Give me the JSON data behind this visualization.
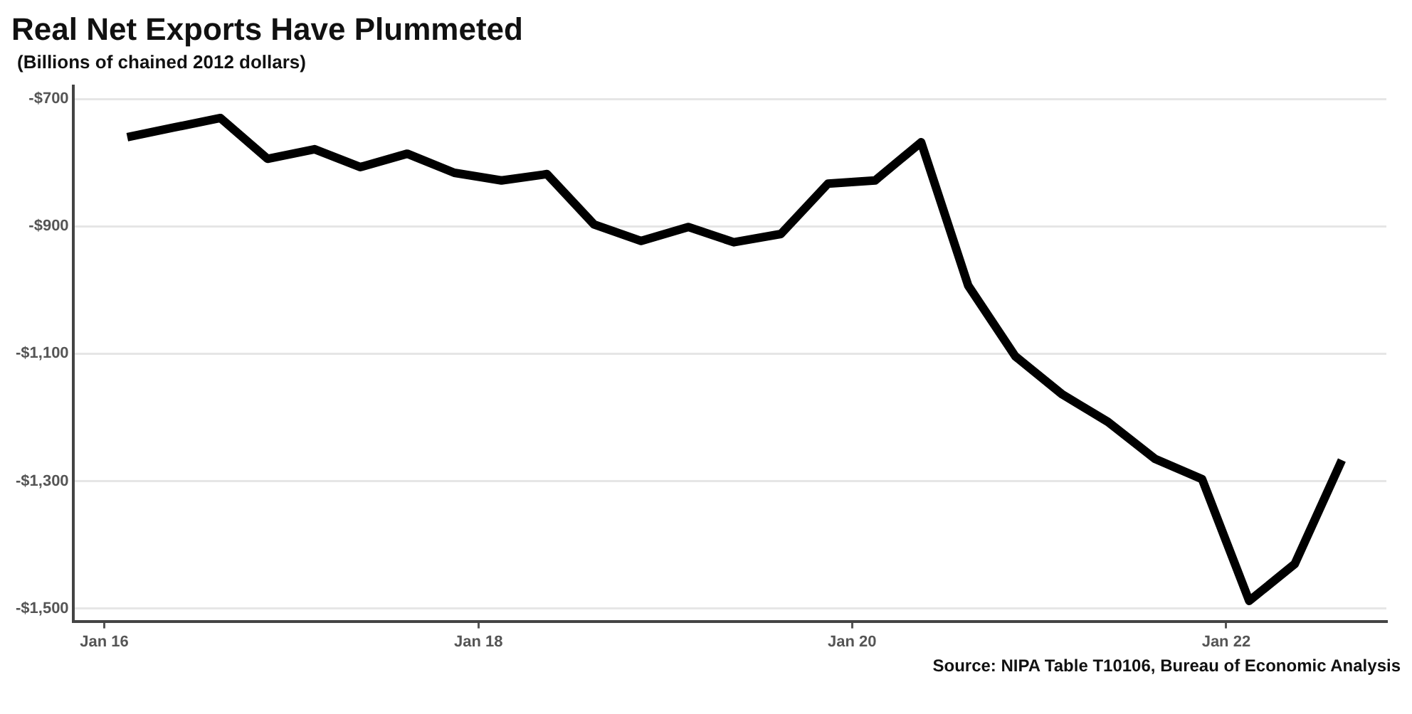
{
  "chart_data": {
    "type": "line",
    "title": "Real Net Exports Have Plummeted",
    "subtitle": "(Billions of chained 2012 dollars)",
    "x": [
      "2016-02-15",
      "2016-05-15",
      "2016-08-15",
      "2016-11-15",
      "2017-02-15",
      "2017-05-15",
      "2017-08-15",
      "2017-11-15",
      "2018-02-15",
      "2018-05-15",
      "2018-08-15",
      "2018-11-15",
      "2019-02-15",
      "2019-05-15",
      "2019-08-15",
      "2019-11-15",
      "2020-02-15",
      "2020-05-15",
      "2020-08-15",
      "2020-11-15",
      "2021-02-15",
      "2021-05-15",
      "2021-08-15",
      "2021-11-15",
      "2022-02-15",
      "2022-05-15",
      "2022-08-15"
    ],
    "series": [
      {
        "color": "#000000",
        "values": [
          -760,
          -745,
          -730,
          -794,
          -779,
          -807,
          -786,
          -816,
          -828,
          -818,
          -897,
          -923,
          -901,
          -925,
          -912,
          -833,
          -828,
          -768,
          -993,
          -1104,
          -1164,
          -1207,
          -1265,
          -1297,
          -1488,
          -1430,
          -1267
        ]
      }
    ],
    "xlim": [
      "2015-11-01",
      "2022-11-10"
    ],
    "xticks": [
      {
        "value": "2016-01-01",
        "label": "Jan 16"
      },
      {
        "value": "2018-01-01",
        "label": "Jan 18"
      },
      {
        "value": "2020-01-01",
        "label": "Jan 20"
      },
      {
        "value": "2022-01-01",
        "label": "Jan 22"
      }
    ],
    "ylim": [
      -1520,
      -680
    ],
    "yticks": [
      {
        "value": -700,
        "label": "-$700"
      },
      {
        "value": -900,
        "label": "-$900"
      },
      {
        "value": -1100,
        "label": "-$1,100"
      },
      {
        "value": -1300,
        "label": "-$1,300"
      },
      {
        "value": -1500,
        "label": "-$1,500"
      }
    ],
    "grid": "y",
    "annotations": [
      "Source: NIPA Table T10106, Bureau of Economic Analysis"
    ]
  }
}
